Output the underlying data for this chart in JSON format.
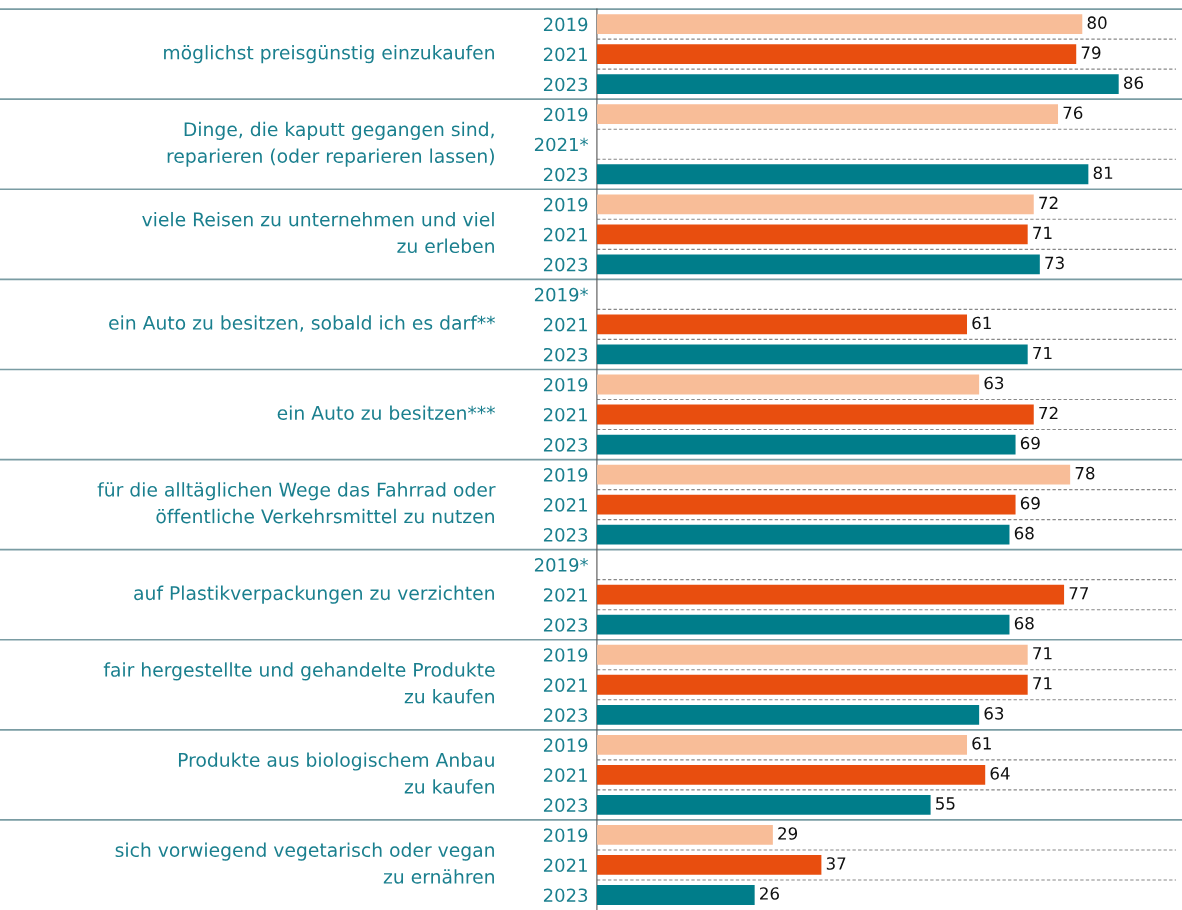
{
  "chart_data": {
    "type": "bar",
    "orientation": "horizontal",
    "data_labels": true,
    "categories": [
      "2019",
      "2021",
      "2023",
      "2019",
      "2021*",
      "2023",
      "2019",
      "2021",
      "2023",
      "2019*",
      "2021",
      "2023",
      "2019",
      "2021",
      "2023",
      "2019",
      "2021",
      "2023",
      "2019*",
      "2021",
      "2023",
      "2019",
      "2021",
      "2023",
      "2019",
      "2021",
      "2023",
      "2019",
      "2021",
      "2023"
    ],
    "values": [
      80,
      79,
      86,
      76,
      null,
      81,
      72,
      71,
      73,
      null,
      61,
      71,
      63,
      72,
      69,
      78,
      69,
      68,
      null,
      77,
      68,
      71,
      71,
      63,
      61,
      64,
      55,
      29,
      37,
      26
    ],
    "colors": [
      "#f8bd98",
      "#e84e0f",
      "#007d8a",
      "#f8bd98",
      "#e84e0f",
      "#007d8a",
      "#f8bd98",
      "#e84e0f",
      "#007d8a",
      "#f8bd98",
      "#e84e0f",
      "#007d8a",
      "#f8bd98",
      "#e84e0f",
      "#007d8a",
      "#f8bd98",
      "#e84e0f",
      "#007d8a",
      "#f8bd98",
      "#e84e0f",
      "#007d8a",
      "#f8bd98",
      "#e84e0f",
      "#007d8a",
      "#f8bd98",
      "#e84e0f",
      "#007d8a",
      "#f8bd98",
      "#e84e0f",
      "#007d8a"
    ],
    "annotations": [
      "möglichst preisgünstig einzukaufen",
      "Dinge, die kaputt gegangen sind,\nreparieren (oder reparieren lassen)",
      "viele Reisen zu unternehmen und viel\nzu erleben",
      "ein Auto zu besitzen, sobald ich es darf**",
      "ein Auto zu besitzen***",
      "für die alltäglichen Wege das Fahrrad oder\nöffentliche Verkehrsmittel zu nutzen",
      "auf Plastikverpackungen zu verzichten",
      "fair hergestellte und gehandelte Produkte\nzu kaufen",
      "Produkte aus biologischem Anbau\nzu kaufen",
      "sich vorwiegend vegetarisch oder vegan\nzu ernähren"
    ]
  }
}
